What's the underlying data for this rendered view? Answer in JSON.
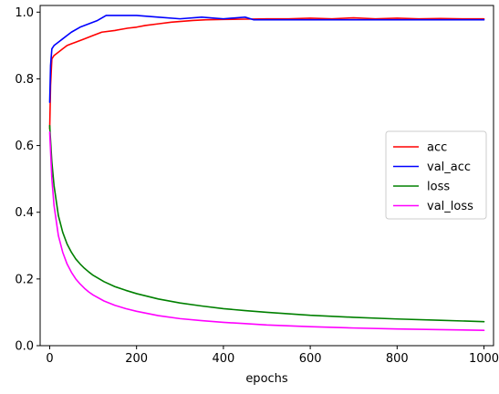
{
  "chart_data": {
    "type": "line",
    "title": "",
    "xlabel": "epochs",
    "ylabel": "",
    "xlim": [
      -22,
      1022
    ],
    "ylim": [
      0.0,
      1.02
    ],
    "xticks": [
      "0",
      "200",
      "400",
      "600",
      "800",
      "1000"
    ],
    "yticks": [
      "0.0",
      "0.2",
      "0.4",
      "0.6",
      "0.8",
      "1.0"
    ],
    "grid": false,
    "legend_position": "center-right",
    "series": [
      {
        "name": "acc",
        "color": "#ff0000",
        "x": [
          0,
          2,
          5,
          10,
          20,
          30,
          40,
          50,
          60,
          80,
          100,
          120,
          150,
          180,
          200,
          220,
          250,
          280,
          300,
          330,
          360,
          400,
          450,
          500,
          550,
          600,
          650,
          700,
          750,
          800,
          850,
          900,
          950,
          1000
        ],
        "y": [
          0.65,
          0.78,
          0.86,
          0.87,
          0.88,
          0.89,
          0.9,
          0.905,
          0.91,
          0.92,
          0.93,
          0.94,
          0.945,
          0.952,
          0.955,
          0.96,
          0.965,
          0.97,
          0.972,
          0.975,
          0.977,
          0.978,
          0.979,
          0.98,
          0.98,
          0.982,
          0.98,
          0.983,
          0.98,
          0.982,
          0.98,
          0.981,
          0.98,
          0.98
        ]
      },
      {
        "name": "val_acc",
        "color": "#0000ff",
        "x": [
          0,
          2,
          5,
          10,
          20,
          30,
          40,
          50,
          70,
          90,
          110,
          130,
          200,
          250,
          300,
          350,
          400,
          450,
          470,
          500,
          600,
          700,
          800,
          900,
          1000
        ],
        "y": [
          0.73,
          0.84,
          0.89,
          0.9,
          0.91,
          0.92,
          0.93,
          0.94,
          0.955,
          0.965,
          0.975,
          0.99,
          0.99,
          0.985,
          0.98,
          0.985,
          0.98,
          0.985,
          0.977,
          0.977,
          0.977,
          0.977,
          0.977,
          0.977,
          0.977
        ]
      },
      {
        "name": "loss",
        "color": "#008000",
        "x": [
          0,
          5,
          10,
          20,
          30,
          40,
          50,
          60,
          70,
          80,
          90,
          100,
          125,
          150,
          175,
          200,
          250,
          300,
          350,
          400,
          450,
          500,
          600,
          700,
          800,
          900,
          1000
        ],
        "y": [
          0.66,
          0.55,
          0.48,
          0.39,
          0.34,
          0.305,
          0.28,
          0.26,
          0.245,
          0.232,
          0.221,
          0.211,
          0.192,
          0.177,
          0.166,
          0.156,
          0.14,
          0.128,
          0.119,
          0.111,
          0.105,
          0.1,
          0.091,
          0.085,
          0.08,
          0.076,
          0.072
        ]
      },
      {
        "name": "val_loss",
        "color": "#ff00ff",
        "x": [
          0,
          5,
          10,
          20,
          30,
          40,
          50,
          60,
          70,
          80,
          90,
          100,
          125,
          150,
          175,
          200,
          250,
          300,
          350,
          400,
          450,
          500,
          600,
          700,
          800,
          900,
          1000
        ],
        "y": [
          0.64,
          0.5,
          0.42,
          0.33,
          0.28,
          0.245,
          0.22,
          0.2,
          0.185,
          0.172,
          0.161,
          0.152,
          0.134,
          0.121,
          0.111,
          0.103,
          0.09,
          0.081,
          0.075,
          0.07,
          0.066,
          0.062,
          0.057,
          0.053,
          0.05,
          0.048,
          0.046
        ]
      }
    ]
  }
}
